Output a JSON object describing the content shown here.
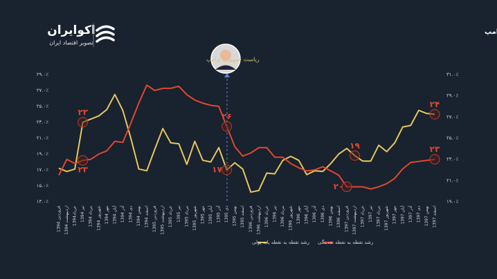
{
  "logo": {
    "name": "اکوایران",
    "tagline": "تصویر اقتصاد ایران"
  },
  "chart_data": {
    "type": "line",
    "title": "روند رشد پایه پولی و نقدینگی دو سال قبل و بعد از ریاست جمهوری دور اول ترامپ",
    "annotation": "ریاست جمهوری ترامپ",
    "categories": [
      "فروردین 1394",
      "اردیبهشت 1394",
      "خرداد1394",
      "تیر 1394",
      "مرداد 1394",
      "شهریور 1394",
      "مهر 1394",
      "آبان 1394",
      "آذر 1394",
      "دی 1394",
      "بهمن 1394",
      "اسفند 1394",
      "فروردین 1395",
      "اردیبهشت 1395",
      "خرداد 1395",
      "تیر 1395",
      "مرداد 1395",
      "شهریور 1395",
      "مهر 1395",
      "آبان 1395",
      "آذر 1395",
      "دی 1395",
      "بهمن 1395",
      "اسفند 1395",
      "فروردین 1396",
      "اردیبهشت 1396",
      "خرداد 1396",
      "تیر 1396",
      "مرداد 1396",
      "شهریور 1396",
      "مهر 1396",
      "آبان 1396",
      "آذر 1396",
      "دی 1396",
      "بهمن 1396",
      "اسفند 1396",
      "فروردین 1397",
      "اردیبهشت 1397",
      "خرداد 1397",
      "تیر 1397",
      "مرداد 1397",
      "شهریور 1397",
      "مهر 1397",
      "آبان 1397",
      "آذر 1397",
      "دی 1397",
      "بهمن 1397",
      "اسفند 1397"
    ],
    "series": [
      {
        "name": "رشد نقطه به نقطه پایه پولی",
        "color": "#e8c85c",
        "axis": "y",
        "values": [
          17.2,
          16.8,
          17.1,
          23.0,
          23.4,
          23.8,
          24.6,
          26.5,
          24.5,
          21.0,
          17.1,
          16.9,
          19.6,
          22.2,
          20.4,
          20.3,
          17.7,
          20.6,
          18.2,
          18.0,
          19.8,
          17.0,
          17.9,
          17.1,
          14.2,
          14.4,
          16.6,
          16.5,
          18.2,
          18.7,
          18.2,
          16.4,
          16.9,
          16.8,
          17.8,
          19.0,
          19.7,
          18.8,
          18.1,
          18.1,
          20.1,
          19.3,
          20.4,
          22.4,
          22.6,
          24.5,
          24.1,
          24.0
        ],
        "value_labels": [
          null,
          null,
          null,
          "۲۳",
          null,
          null,
          null,
          null,
          null,
          null,
          null,
          null,
          null,
          null,
          null,
          null,
          null,
          null,
          null,
          null,
          null,
          "۱۷",
          null,
          null,
          null,
          null,
          null,
          null,
          null,
          null,
          null,
          null,
          null,
          null,
          null,
          null,
          null,
          "۱۹",
          null,
          null,
          null,
          null,
          null,
          null,
          null,
          null,
          null,
          "۲۴"
        ]
      },
      {
        "name": "رشد نقطه به نقطه نقدینگی",
        "color": "#e2472f",
        "axis": "y2",
        "values": [
          21.5,
          23.0,
          22.6,
          22.9,
          23.0,
          23.5,
          23.8,
          24.7,
          24.6,
          26.4,
          28.3,
          30.0,
          29.5,
          29.7,
          29.7,
          29.9,
          29.1,
          28.6,
          28.3,
          28.1,
          28.0,
          26.1,
          24.2,
          23.3,
          23.6,
          24.1,
          24.1,
          23.2,
          23.2,
          22.6,
          22.2,
          21.9,
          22.0,
          22.3,
          21.9,
          21.5,
          20.4,
          20.4,
          20.4,
          20.2,
          20.4,
          20.7,
          21.2,
          22.1,
          22.7,
          22.8,
          22.9,
          23.0
        ],
        "value_labels": [
          null,
          null,
          null,
          "۲۳",
          null,
          null,
          null,
          null,
          null,
          null,
          null,
          null,
          null,
          null,
          null,
          null,
          null,
          null,
          null,
          null,
          null,
          "۲۶",
          null,
          null,
          null,
          null,
          null,
          null,
          null,
          null,
          null,
          null,
          null,
          null,
          null,
          null,
          "۲۰",
          null,
          null,
          null,
          null,
          null,
          null,
          null,
          null,
          null,
          null,
          "۲۳"
        ]
      }
    ],
    "ylim": [
      13,
      29
    ],
    "yticks": [
      {
        "value": 29,
        "label": "۲۹.۰٪"
      },
      {
        "value": 27,
        "label": "۲۷.۰٪"
      },
      {
        "value": 25,
        "label": "۲۵.۰٪"
      },
      {
        "value": 23,
        "label": "۲۳.۰٪"
      },
      {
        "value": 21,
        "label": "۲۱.۰٪"
      },
      {
        "value": 19,
        "label": "۱۹.۰٪"
      },
      {
        "value": 17,
        "label": "۱۷.۰٪"
      },
      {
        "value": 15,
        "label": "۱۵.۰٪"
      },
      {
        "value": 13,
        "label": "۱۳.۰٪"
      }
    ],
    "y2lim": [
      19,
      31
    ],
    "y2ticks": [
      {
        "value": 31,
        "label": "۳۱.۰٪"
      },
      {
        "value": 29,
        "label": "۲۹.۰٪"
      },
      {
        "value": 27,
        "label": "۲۷.۰٪"
      },
      {
        "value": 25,
        "label": "۲۵.۰٪"
      },
      {
        "value": 23,
        "label": "۲۳.۰٪"
      },
      {
        "value": 21,
        "label": "۲۱.۰٪"
      },
      {
        "value": 19,
        "label": "۱۹.۰٪"
      }
    ],
    "grid": false
  }
}
